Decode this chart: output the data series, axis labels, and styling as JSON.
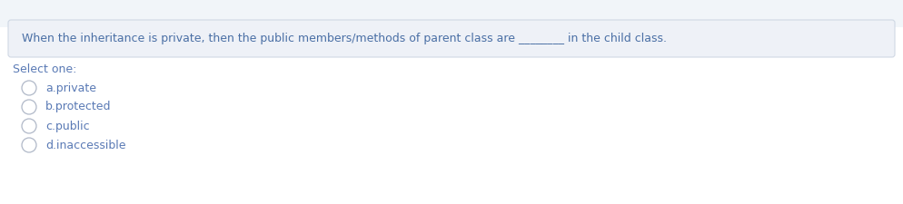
{
  "question_text": "When the inheritance is private, then the public members/methods of parent class are ________ in the child class.",
  "select_one_label": "Select one:",
  "options": [
    "a.private",
    "b.protected",
    "c.public",
    "d.inaccessible"
  ],
  "page_bg_color": "#f1f5f9",
  "content_bg_color": "#ffffff",
  "question_box_bg": "#eef1f7",
  "question_box_border": "#d0d8e4",
  "question_text_color": "#4a6fa5",
  "select_label_color": "#5a7ab5",
  "option_text_color": "#5a7ab5",
  "circle_edge_color": "#b0b8c8",
  "circle_face_color": "#ffffff",
  "font_size_question": 9.0,
  "font_size_options": 9.0,
  "font_size_select": 9.0
}
